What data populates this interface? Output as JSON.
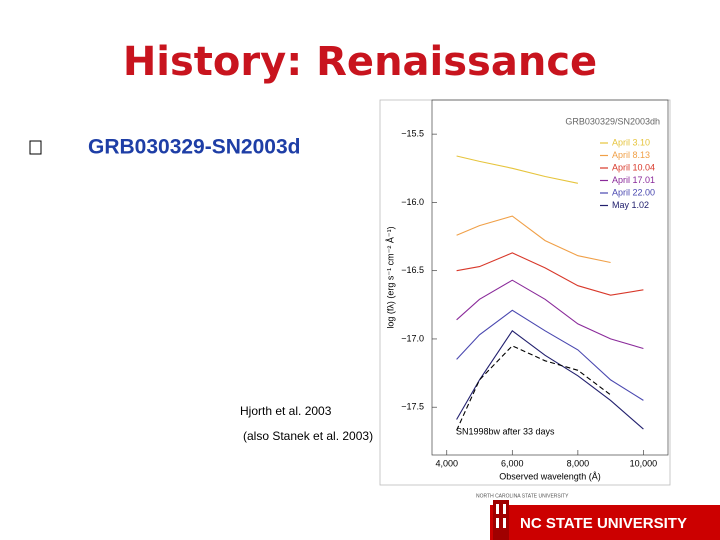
{
  "slide": {
    "title": "History: Renaissance",
    "bullets": [
      "GRB030329-SN2003d"
    ],
    "citation": [
      "Hjorth et al. 2003",
      "(also Stanek et al. 2003)"
    ]
  },
  "chart_data": {
    "type": "line",
    "title": "GRB030329/SN2003dh",
    "x_label": "Observed wavelength (Å)",
    "y_label": "log (fλ) (erg s⁻¹ cm⁻² Å⁻¹)",
    "x": [
      4300,
      5000,
      6000,
      7000,
      8000,
      9000,
      10000
    ],
    "series": [
      {
        "name": "April 3.10",
        "color": "#e6c43c",
        "values": [
          -15.66,
          -15.7,
          -15.75,
          -15.81,
          -15.86,
          null,
          null
        ]
      },
      {
        "name": "April 8.13",
        "color": "#f0a048",
        "values": [
          -16.24,
          -16.17,
          -16.1,
          -16.28,
          -16.39,
          -16.44,
          null
        ]
      },
      {
        "name": "April 10.04",
        "color": "#d8382a",
        "values": [
          -16.5,
          -16.47,
          -16.37,
          -16.48,
          -16.61,
          -16.68,
          -16.64
        ]
      },
      {
        "name": "April 17.01",
        "color": "#8a2a9a",
        "values": [
          -16.86,
          -16.71,
          -16.57,
          -16.71,
          -16.89,
          -17.0,
          -17.07
        ]
      },
      {
        "name": "April 22.00",
        "color": "#4a48b0",
        "values": [
          -17.15,
          -16.97,
          -16.79,
          -16.94,
          -17.08,
          -17.3,
          -17.45
        ]
      },
      {
        "name": "May 1.02",
        "color": "#22206e",
        "values": [
          -17.59,
          -17.3,
          -16.94,
          -17.12,
          -17.27,
          -17.45,
          -17.66
        ]
      }
    ],
    "comparison": {
      "name": "SN1998bw after 33 days",
      "color": "#000000",
      "dashed": true,
      "values": [
        -17.67,
        -17.3,
        -17.05,
        -17.16,
        -17.23,
        -17.41,
        null
      ]
    },
    "xlim": [
      3550,
      10750
    ],
    "ylim": [
      -17.85,
      -15.25
    ],
    "xticks": [
      {
        "value": 4000,
        "label": "4,000"
      },
      {
        "value": 6000,
        "label": "6,000"
      },
      {
        "value": 8000,
        "label": "8,000"
      },
      {
        "value": 10000,
        "label": "10,000"
      }
    ],
    "yticks": [
      {
        "value": -15.5,
        "label": "−15.5"
      },
      {
        "value": -16.0,
        "label": "−16.0"
      },
      {
        "value": -16.5,
        "label": "−16.5"
      },
      {
        "value": -17.0,
        "label": "−17.0"
      },
      {
        "value": -17.5,
        "label": "−17.5"
      }
    ],
    "legend": "upper right"
  },
  "footer": {
    "university": "NC STATE UNIVERSITY",
    "small": "NORTH CAROLINA STATE UNIVERSITY"
  }
}
